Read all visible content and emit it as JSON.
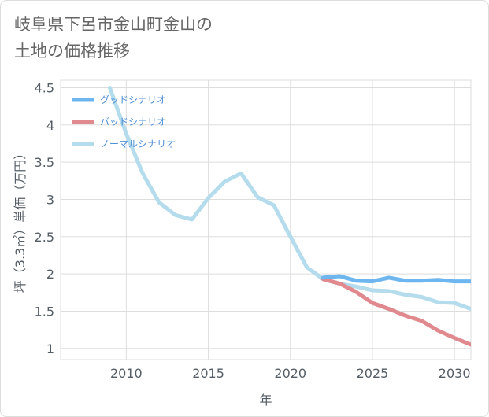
{
  "title": "岐阜県下呂市金山町金山の\n土地の価格推移",
  "chart_data": {
    "type": "line",
    "xlabel": "年",
    "ylabel": "坪（3.3㎡）単価（万円）",
    "xlim": [
      2006,
      2031
    ],
    "ylim": [
      0.85,
      4.6
    ],
    "xticks": [
      2010,
      2015,
      2020,
      2025,
      2030
    ],
    "yticks": [
      1,
      1.5,
      2,
      2.5,
      3,
      3.5,
      4,
      4.5
    ],
    "ytick_labels": [
      "1",
      "1.5",
      "2",
      "2.5",
      "3",
      "3.5",
      "4",
      "4.5"
    ],
    "grid": true,
    "legend_position": "top-left",
    "series": [
      {
        "name": "グッドシナリオ",
        "color": "#6db6ef",
        "x": [
          2022,
          2023,
          2024,
          2025,
          2026,
          2027,
          2028,
          2029,
          2030,
          2031
        ],
        "y": [
          1.95,
          1.97,
          1.91,
          1.9,
          1.95,
          1.91,
          1.91,
          1.92,
          1.9,
          1.9
        ]
      },
      {
        "name": "バッドシナリオ",
        "color": "#e08a90",
        "x": [
          2022,
          2023,
          2024,
          2025,
          2026,
          2027,
          2028,
          2029,
          2030,
          2031
        ],
        "y": [
          1.93,
          1.87,
          1.76,
          1.61,
          1.53,
          1.44,
          1.37,
          1.24,
          1.14,
          1.05
        ]
      },
      {
        "name": "ノーマルシナリオ",
        "color": "#b5dcec",
        "x": [
          2009,
          2010,
          2011,
          2012,
          2013,
          2014,
          2015,
          2016,
          2017,
          2018,
          2019,
          2020,
          2021,
          2022,
          2023,
          2024,
          2025,
          2026,
          2027,
          2028,
          2029,
          2030,
          2031
        ],
        "y": [
          4.5,
          3.88,
          3.35,
          2.96,
          2.79,
          2.73,
          3.02,
          3.24,
          3.35,
          3.03,
          2.92,
          2.5,
          2.09,
          1.93,
          1.87,
          1.83,
          1.78,
          1.77,
          1.72,
          1.69,
          1.62,
          1.61,
          1.53
        ]
      }
    ]
  }
}
